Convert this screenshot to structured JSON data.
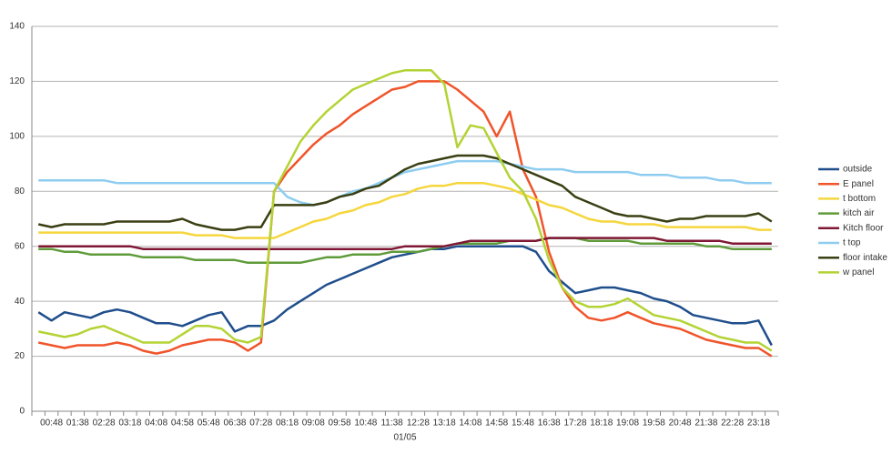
{
  "chart_data": {
    "type": "line",
    "xlabel": "01/05",
    "categories": [
      null,
      "00:48",
      null,
      "01:38",
      null,
      "02:28",
      null,
      "03:18",
      null,
      "04:08",
      null,
      "04:58",
      null,
      "05:48",
      null,
      "06:38",
      null,
      "07:28",
      null,
      "08:18",
      null,
      "09:08",
      null,
      "09:58",
      null,
      "10:48",
      null,
      "11:38",
      null,
      "12:28",
      null,
      "13:18",
      null,
      "14:08",
      null,
      "14:58",
      null,
      "15:48",
      null,
      "16:38",
      null,
      "17:28",
      null,
      "18:18",
      null,
      "19:08",
      null,
      "19:58",
      null,
      "20:48",
      null,
      "21:38",
      null,
      "22:28",
      null,
      "23:18",
      null
    ],
    "ylim": [
      0,
      140
    ],
    "yticks": [
      0,
      20,
      40,
      60,
      80,
      100,
      120,
      140
    ],
    "grid": true,
    "legend": "right",
    "series": [
      {
        "name": "outside",
        "color": "#1f4e8c",
        "values": [
          36,
          33,
          36,
          35,
          34,
          36,
          37,
          36,
          34,
          32,
          32,
          31,
          33,
          35,
          36,
          29,
          31,
          31,
          33,
          37,
          40,
          43,
          46,
          48,
          50,
          52,
          54,
          56,
          57,
          58,
          59,
          59,
          60,
          60,
          60,
          60,
          60,
          60,
          58,
          51,
          47,
          43,
          44,
          45,
          45,
          44,
          43,
          41,
          40,
          38,
          35,
          34,
          33,
          32,
          32,
          33,
          24
        ]
      },
      {
        "name": "E panel",
        "color": "#f0542a",
        "values": [
          25,
          24,
          23,
          24,
          24,
          24,
          25,
          24,
          22,
          21,
          22,
          24,
          25,
          26,
          26,
          25,
          22,
          25,
          80,
          87,
          92,
          97,
          101,
          104,
          108,
          111,
          114,
          117,
          118,
          120,
          120,
          120,
          117,
          113,
          109,
          100,
          109,
          88,
          78,
          58,
          45,
          38,
          34,
          33,
          34,
          36,
          34,
          32,
          31,
          30,
          28,
          26,
          25,
          24,
          23,
          23,
          20
        ]
      },
      {
        "name": "t bottom",
        "color": "#f5d63d",
        "values": [
          65,
          65,
          65,
          65,
          65,
          65,
          65,
          65,
          65,
          65,
          65,
          65,
          64,
          64,
          64,
          63,
          63,
          63,
          63,
          65,
          67,
          69,
          70,
          72,
          73,
          75,
          76,
          78,
          79,
          81,
          82,
          82,
          83,
          83,
          83,
          82,
          81,
          79,
          77,
          75,
          74,
          72,
          70,
          69,
          69,
          68,
          68,
          68,
          67,
          67,
          67,
          67,
          67,
          67,
          67,
          66,
          66
        ]
      },
      {
        "name": "kitch air",
        "color": "#5f9b3a",
        "values": [
          59,
          59,
          58,
          58,
          57,
          57,
          57,
          57,
          56,
          56,
          56,
          56,
          55,
          55,
          55,
          55,
          54,
          54,
          54,
          54,
          54,
          55,
          56,
          56,
          57,
          57,
          57,
          58,
          58,
          58,
          59,
          60,
          61,
          61,
          61,
          61,
          62,
          62,
          62,
          63,
          63,
          63,
          62,
          62,
          62,
          62,
          61,
          61,
          61,
          61,
          61,
          60,
          60,
          59,
          59,
          59,
          59
        ]
      },
      {
        "name": "Kitch floor",
        "color": "#7f1734",
        "values": [
          60,
          60,
          60,
          60,
          60,
          60,
          60,
          60,
          59,
          59,
          59,
          59,
          59,
          59,
          59,
          59,
          59,
          59,
          59,
          59,
          59,
          59,
          59,
          59,
          59,
          59,
          59,
          59,
          60,
          60,
          60,
          60,
          61,
          62,
          62,
          62,
          62,
          62,
          62,
          63,
          63,
          63,
          63,
          63,
          63,
          63,
          63,
          63,
          62,
          62,
          62,
          62,
          62,
          61,
          61,
          61,
          61
        ]
      },
      {
        "name": "t top",
        "color": "#8fcdf0",
        "values": [
          84,
          84,
          84,
          84,
          84,
          84,
          83,
          83,
          83,
          83,
          83,
          83,
          83,
          83,
          83,
          83,
          83,
          83,
          83,
          78,
          76,
          75,
          76,
          78,
          80,
          81,
          83,
          85,
          87,
          88,
          89,
          90,
          91,
          91,
          91,
          91,
          90,
          89,
          88,
          88,
          88,
          87,
          87,
          87,
          87,
          87,
          86,
          86,
          86,
          85,
          85,
          85,
          84,
          84,
          83,
          83,
          83
        ]
      },
      {
        "name": "floor intake",
        "color": "#3a3f12",
        "values": [
          68,
          67,
          68,
          68,
          68,
          68,
          69,
          69,
          69,
          69,
          69,
          70,
          68,
          67,
          66,
          66,
          67,
          67,
          75,
          75,
          75,
          75,
          76,
          78,
          79,
          81,
          82,
          85,
          88,
          90,
          91,
          92,
          93,
          93,
          93,
          92,
          90,
          88,
          86,
          84,
          82,
          78,
          76,
          74,
          72,
          71,
          71,
          70,
          69,
          70,
          70,
          71,
          71,
          71,
          71,
          72,
          69
        ]
      },
      {
        "name": "w panel",
        "color": "#b3d334",
        "values": [
          29,
          28,
          27,
          28,
          30,
          31,
          29,
          27,
          25,
          25,
          25,
          28,
          31,
          31,
          30,
          26,
          25,
          27,
          80,
          89,
          98,
          104,
          109,
          113,
          117,
          119,
          121,
          123,
          124,
          124,
          124,
          119,
          96,
          104,
          103,
          94,
          85,
          80,
          70,
          55,
          45,
          40,
          38,
          38,
          39,
          41,
          38,
          35,
          34,
          33,
          31,
          29,
          27,
          26,
          25,
          25,
          22
        ]
      }
    ]
  }
}
